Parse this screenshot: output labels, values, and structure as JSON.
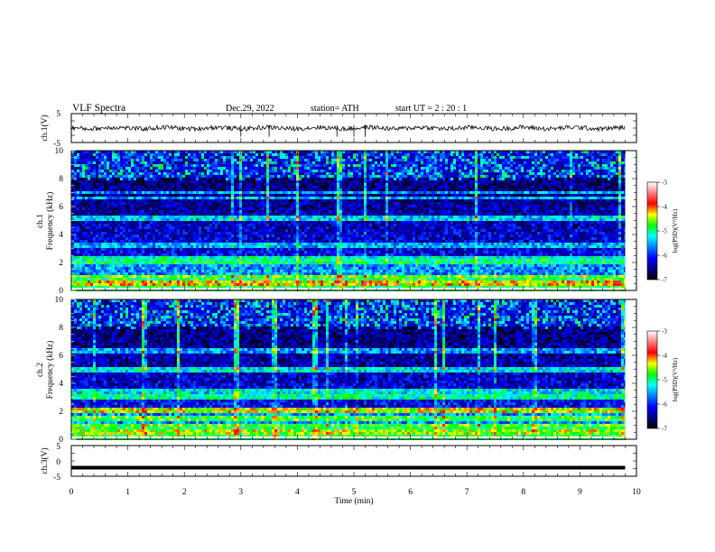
{
  "header": {
    "title": "VLF  Spectra",
    "date": "Dec.29, 2022",
    "station": "station= ATH",
    "start": "start  UT  =   2  : 20 : 1"
  },
  "colorbar": {
    "label": "log(PSD)(V²/Hz)",
    "ticks": [
      "-3",
      "-4",
      "-5",
      "-6",
      "-7"
    ],
    "colors": [
      "#ffffff",
      "#ff8080",
      "#ff0000",
      "#ffff00",
      "#00ff00",
      "#00ffff",
      "#0080ff",
      "#0000ff",
      "#000080",
      "#000000"
    ]
  },
  "chart_data": [
    {
      "type": "line",
      "name": "ch1-waveform",
      "ylabel": "ch.1(V)",
      "ylim": [
        -5,
        5
      ],
      "yticks": [
        "5",
        "-5"
      ],
      "xlim": [
        0,
        10
      ],
      "mean": 0,
      "amplitude": 1,
      "spikes": [
        3.0,
        3.5,
        4.7,
        5.0,
        5.2
      ]
    },
    {
      "type": "heatmap",
      "name": "ch1-spectrogram",
      "ylabel_top": "ch.1",
      "ylabel": "Frequency  (kHz)",
      "ylim": [
        0,
        10
      ],
      "yticks": [
        "0",
        "2",
        "4",
        "6",
        "8",
        "10"
      ],
      "xlim": [
        0,
        10
      ],
      "data_end_min": 9.8,
      "zlim": [
        -7,
        -3
      ],
      "bands": [
        {
          "freq": 0.5,
          "level": -4.3
        },
        {
          "freq": 1.0,
          "level": -4.6
        },
        {
          "freq": 2.0,
          "level": -5.0
        },
        {
          "freq": 2.3,
          "level": -5.2
        },
        {
          "freq": 3.3,
          "level": -5.5
        },
        {
          "freq": 5.2,
          "level": -5.4
        },
        {
          "freq": 6.6,
          "level": -5.5
        },
        {
          "freq": 7.0,
          "level": -5.6
        }
      ]
    },
    {
      "type": "heatmap",
      "name": "ch2-spectrogram",
      "ylabel_top": "ch.2",
      "ylabel": "Frequency  (kHz)",
      "ylim": [
        0,
        10
      ],
      "yticks": [
        "0",
        "2",
        "4",
        "6",
        "8",
        "10"
      ],
      "xlim": [
        0,
        10
      ],
      "data_end_min": 9.8,
      "zlim": [
        -7,
        -3
      ],
      "bands": [
        {
          "freq": 0.5,
          "level": -4.5
        },
        {
          "freq": 1.0,
          "level": -4.7
        },
        {
          "freq": 1.5,
          "level": -4.8
        },
        {
          "freq": 2.0,
          "level": -4.4
        },
        {
          "freq": 3.0,
          "level": -5.1
        },
        {
          "freq": 3.4,
          "level": -5.3
        },
        {
          "freq": 4.9,
          "level": -5.3
        },
        {
          "freq": 6.4,
          "level": -5.6
        }
      ]
    },
    {
      "type": "line",
      "name": "ch3-waveform",
      "ylabel": "ch.3(V)",
      "ylim": [
        -5,
        5
      ],
      "yticks": [
        "5",
        "0",
        "-5"
      ],
      "xlim": [
        0,
        10
      ],
      "mean": -2.2,
      "amplitude": 0.15
    }
  ],
  "xaxis": {
    "label": "Time  (min)",
    "ticks": [
      "0",
      "1",
      "2",
      "3",
      "4",
      "5",
      "6",
      "7",
      "8",
      "9",
      "10"
    ],
    "range": [
      0,
      10
    ]
  }
}
